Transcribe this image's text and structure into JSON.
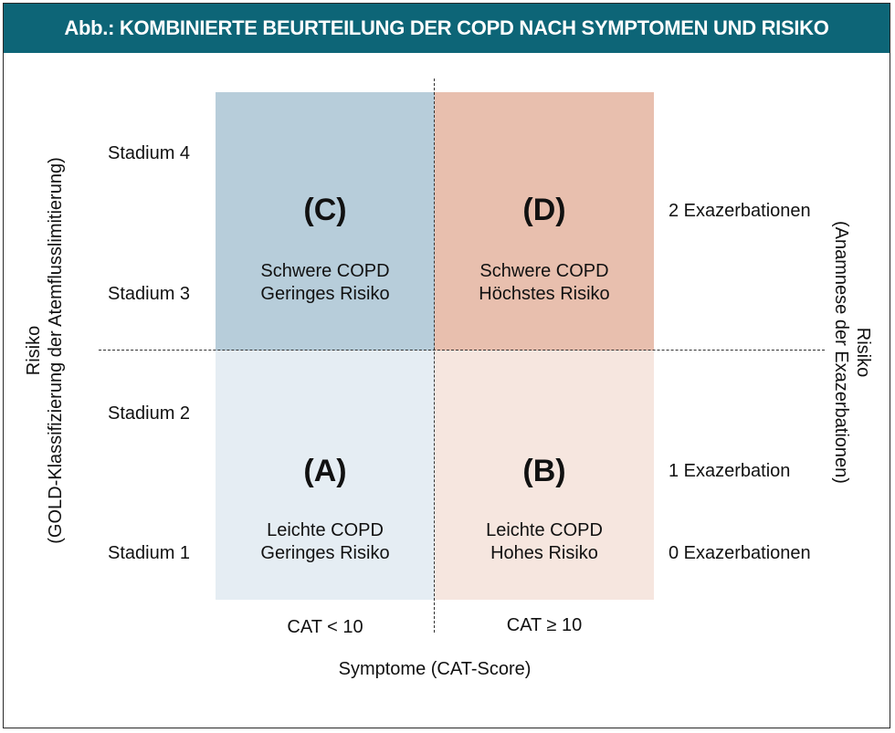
{
  "title": "Abb.: KOMBINIERTE BEURTEILUNG DER COPD NACH SYMPTOMEN UND RISIKO",
  "colors": {
    "title_bg": "#0d6577",
    "quadrant_c": "#b7cdda",
    "quadrant_d": "#e8bfae",
    "quadrant_a": "#e5edf3",
    "quadrant_b": "#f6e6df"
  },
  "quadrants": {
    "c": {
      "letter": "(C)",
      "line1": "Schwere COPD",
      "line2": "Geringes Risiko"
    },
    "d": {
      "letter": "(D)",
      "line1": "Schwere COPD",
      "line2": "Höchstes Risiko"
    },
    "a": {
      "letter": "(A)",
      "line1": "Leichte COPD",
      "line2": "Geringes Risiko"
    },
    "b": {
      "letter": "(B)",
      "line1": "Leichte COPD",
      "line2": "Hohes Risiko"
    }
  },
  "stages": {
    "s4": "Stadium 4",
    "s3": "Stadium 3",
    "s2": "Stadium 2",
    "s1": "Stadium 1"
  },
  "exacerbations": {
    "e2": "2 Exazerbationen",
    "e1": "1 Exazerbation",
    "e0": "0 Exazerbationen"
  },
  "cat": {
    "low": "CAT < 10",
    "high": "CAT ≥ 10"
  },
  "axes": {
    "x_label": "Symptome (CAT-Score)",
    "left_line1": "Risiko",
    "left_line2": "(GOLD-Klassifizierung der Atemflusslimitierung)",
    "right_line1": "Risiko",
    "right_line2": "(Anamnese der Exazerbationen)"
  }
}
